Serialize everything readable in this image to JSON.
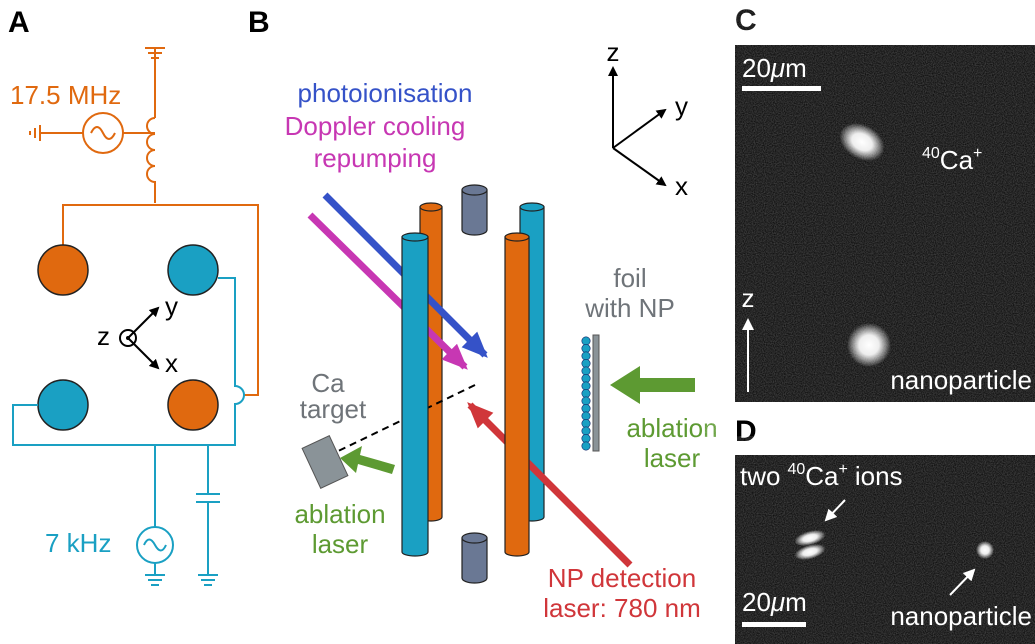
{
  "panels": {
    "a": {
      "label": "A",
      "rf_frequency": "17.5 MHz",
      "dc_frequency": "7 kHz",
      "axes": {
        "z": "z",
        "y": "y",
        "x": "x"
      }
    },
    "b": {
      "label": "B",
      "beams": [
        "photoionisation",
        "Doppler cooling",
        "repumping"
      ],
      "axes": {
        "z": "z",
        "y": "y",
        "x": "x"
      },
      "foil": [
        "foil",
        "with NP"
      ],
      "target": [
        "Ca",
        "target"
      ],
      "ablation_left": [
        "ablation",
        "laser"
      ],
      "ablation_right": [
        "ablation",
        "laser"
      ],
      "detection": [
        "NP detection",
        "laser: 780 nm"
      ]
    },
    "c": {
      "label": "C",
      "scale_bar": {
        "number": "20",
        "prefix": "μ",
        "unit": "m"
      },
      "ion": {
        "mass": "40",
        "element": "Ca",
        "charge": "+"
      },
      "axis": "z",
      "particle": "nanoparticle"
    },
    "d": {
      "label": "D",
      "ions": {
        "count": "two",
        "mass": "40",
        "element": "Ca",
        "charge": "+",
        "noun": "ions"
      },
      "scale_bar": {
        "number": "20",
        "prefix": "μ",
        "unit": "m"
      },
      "particle": "nanoparticle"
    }
  }
}
